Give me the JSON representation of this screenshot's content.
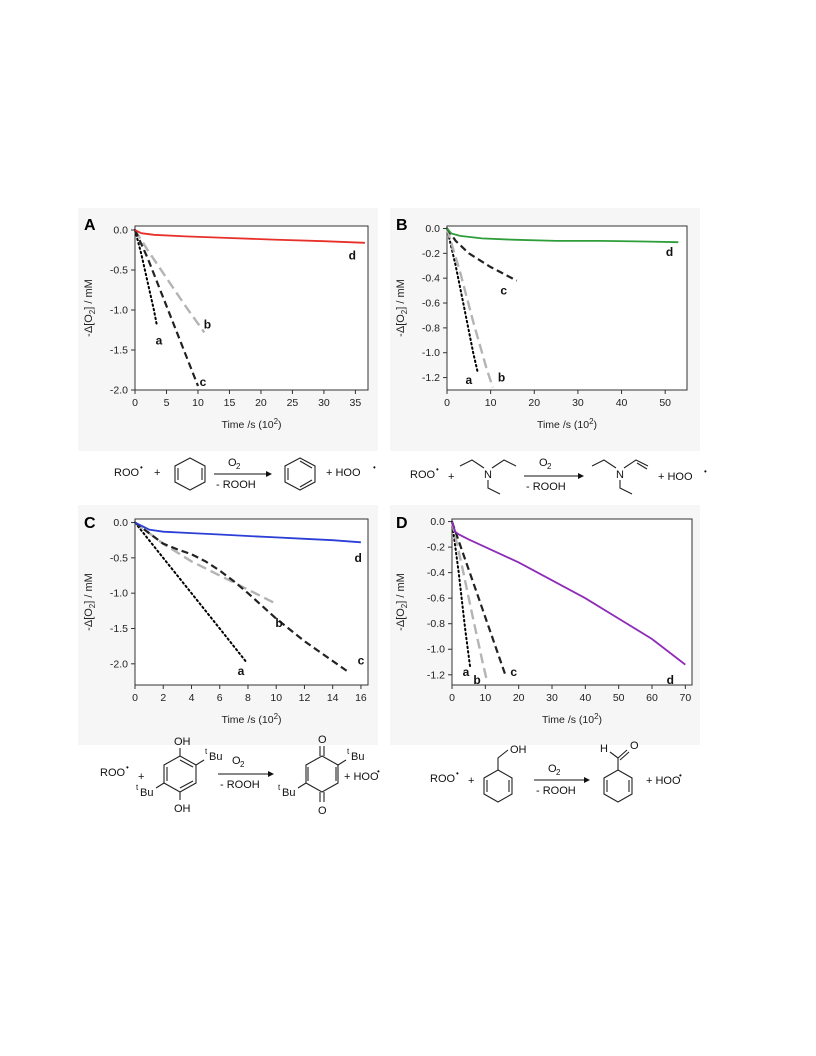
{
  "chart_data": [
    {
      "type": "line",
      "panel": "A",
      "xlabel": "Time /s (10",
      "xlabel_sup": "2",
      "xlabel_end": ")",
      "ylabel": "-Δ[O",
      "ylabel_sub": "2",
      "ylabel_end": "] / mM",
      "xlim": [
        0,
        37
      ],
      "ylim": [
        -2.0,
        0.05
      ],
      "xticks": [
        0,
        5,
        10,
        15,
        20,
        25,
        30,
        35
      ],
      "xtick_labels": [
        "0",
        "5",
        "10",
        "15",
        "20",
        "25",
        "30",
        "35"
      ],
      "yticks": [
        0.0,
        -0.5,
        -1.0,
        -1.5,
        -2.0
      ],
      "ytick_labels": [
        "0.0",
        "-0.5",
        "-1.0",
        "-1.5",
        "-2.0"
      ],
      "series": [
        {
          "name": "a",
          "style": "dotted",
          "color": "#000000",
          "x": [
            0,
            1,
            2,
            3,
            3.5
          ],
          "y": [
            0,
            -0.3,
            -0.65,
            -1.0,
            -1.2
          ]
        },
        {
          "name": "b",
          "style": "dashed-light",
          "color": "#b4b4b4",
          "x": [
            0,
            2,
            5,
            8,
            11
          ],
          "y": [
            0,
            -0.25,
            -0.6,
            -0.95,
            -1.28
          ]
        },
        {
          "name": "c",
          "style": "dashed",
          "color": "#222222",
          "x": [
            0,
            2,
            4,
            6,
            8,
            10
          ],
          "y": [
            0,
            -0.35,
            -0.75,
            -1.15,
            -1.55,
            -1.95
          ]
        },
        {
          "name": "d",
          "style": "solid",
          "color": "#e8302a",
          "x": [
            0,
            1,
            3,
            8,
            15,
            22,
            30,
            36.5
          ],
          "y": [
            0,
            -0.04,
            -0.06,
            -0.08,
            -0.1,
            -0.12,
            -0.14,
            -0.16
          ]
        }
      ],
      "label_positions": [
        {
          "text": "a",
          "x": 3.8,
          "y": -1.38
        },
        {
          "text": "b",
          "x": 11.5,
          "y": -1.18
        },
        {
          "text": "c",
          "x": 10.8,
          "y": -1.9
        },
        {
          "text": "d",
          "x": 34.5,
          "y": -0.32
        }
      ]
    },
    {
      "type": "line",
      "panel": "B",
      "xlabel": "Time /s (10",
      "xlabel_sup": "2",
      "xlabel_end": ")",
      "ylabel": "-Δ[O",
      "ylabel_sub": "2",
      "ylabel_end": "] / mM",
      "xlim": [
        0,
        55
      ],
      "ylim": [
        -1.3,
        0.02
      ],
      "xticks": [
        0,
        10,
        20,
        30,
        40,
        50
      ],
      "xtick_labels": [
        "0",
        "10",
        "20",
        "30",
        "40",
        "50"
      ],
      "yticks": [
        0.0,
        -0.2,
        -0.4,
        -0.6,
        -0.8,
        -1.0,
        -1.2
      ],
      "ytick_labels": [
        "0.0",
        "-0.2",
        "-0.4",
        "-0.6",
        "-0.8",
        "-1.0",
        "-1.2"
      ],
      "series": [
        {
          "name": "a",
          "style": "dotted",
          "color": "#000000",
          "x": [
            0,
            2,
            4,
            6,
            7
          ],
          "y": [
            0,
            -0.3,
            -0.65,
            -1.0,
            -1.15
          ]
        },
        {
          "name": "b",
          "style": "dashed-light",
          "color": "#b4b4b4",
          "x": [
            0,
            3,
            6,
            9,
            10.5
          ],
          "y": [
            0,
            -0.35,
            -0.75,
            -1.12,
            -1.28
          ]
        },
        {
          "name": "c",
          "style": "dashed",
          "color": "#222222",
          "x": [
            0,
            2,
            5,
            10,
            16
          ],
          "y": [
            0,
            -0.1,
            -0.2,
            -0.31,
            -0.42
          ]
        },
        {
          "name": "d",
          "style": "solid",
          "color": "#2e9e3a",
          "x": [
            0,
            1,
            3,
            8,
            15,
            25,
            35,
            45,
            53
          ],
          "y": [
            0,
            -0.04,
            -0.06,
            -0.08,
            -0.09,
            -0.1,
            -0.1,
            -0.105,
            -0.11
          ]
        }
      ],
      "label_positions": [
        {
          "text": "a",
          "x": 5,
          "y": -1.22
        },
        {
          "text": "b",
          "x": 12.5,
          "y": -1.2
        },
        {
          "text": "c",
          "x": 13,
          "y": -0.5
        },
        {
          "text": "d",
          "x": 51,
          "y": -0.19
        }
      ]
    },
    {
      "type": "line",
      "panel": "C",
      "xlabel": "Time /s (10",
      "xlabel_sup": "2",
      "xlabel_end": ")",
      "ylabel": "-Δ[O",
      "ylabel_sub": "2",
      "ylabel_end": "] / mM",
      "xlim": [
        0,
        16.5
      ],
      "ylim": [
        -2.3,
        0.05
      ],
      "xticks": [
        0,
        2,
        4,
        6,
        8,
        10,
        12,
        14,
        16
      ],
      "xtick_labels": [
        "0",
        "2",
        "4",
        "6",
        "8",
        "10",
        "12",
        "14",
        "16"
      ],
      "yticks": [
        0.0,
        -0.5,
        -1.0,
        -1.5,
        -2.0
      ],
      "ytick_labels": [
        "0.0",
        "-0.5",
        "-1.0",
        "-1.5",
        "-2.0"
      ],
      "series": [
        {
          "name": "a",
          "style": "dotted",
          "color": "#000000",
          "x": [
            0,
            2,
            4,
            6,
            7.9
          ],
          "y": [
            0,
            -0.5,
            -1.0,
            -1.5,
            -1.98
          ]
        },
        {
          "name": "b",
          "style": "dashed-light",
          "color": "#b4b4b4",
          "x": [
            0,
            1,
            2,
            4,
            6,
            8,
            10
          ],
          "y": [
            0,
            -0.15,
            -0.3,
            -0.55,
            -0.75,
            -0.95,
            -1.15
          ]
        },
        {
          "name": "c",
          "style": "dashed",
          "color": "#222222",
          "x": [
            0,
            1,
            2,
            3,
            4,
            5,
            6,
            7,
            8,
            9,
            10,
            11,
            12,
            13,
            14,
            15
          ],
          "y": [
            0,
            -0.15,
            -0.3,
            -0.38,
            -0.45,
            -0.55,
            -0.68,
            -0.83,
            -1.0,
            -1.18,
            -1.36,
            -1.52,
            -1.68,
            -1.82,
            -1.96,
            -2.1
          ]
        },
        {
          "name": "d",
          "style": "solid",
          "color": "#2b3fd6",
          "x": [
            0,
            0.5,
            1,
            2,
            4,
            6,
            8,
            10,
            12,
            14,
            16
          ],
          "y": [
            0,
            -0.05,
            -0.1,
            -0.13,
            -0.15,
            -0.17,
            -0.19,
            -0.21,
            -0.23,
            -0.25,
            -0.28
          ]
        }
      ],
      "label_positions": [
        {
          "text": "a",
          "x": 7.5,
          "y": -2.1
        },
        {
          "text": "b",
          "x": 10.2,
          "y": -1.42
        },
        {
          "text": "c",
          "x": 16,
          "y": -1.95
        },
        {
          "text": "d",
          "x": 15.8,
          "y": -0.5
        }
      ]
    },
    {
      "type": "line",
      "panel": "D",
      "xlabel": "Time /s (10",
      "xlabel_sup": "2",
      "xlabel_end": ")",
      "ylabel": "-Δ[O",
      "ylabel_sub": "2",
      "ylabel_end": "] / mM",
      "xlim": [
        0,
        72
      ],
      "ylim": [
        -1.28,
        0.02
      ],
      "xticks": [
        0,
        10,
        20,
        30,
        40,
        50,
        60,
        70
      ],
      "xtick_labels": [
        "0",
        "10",
        "20",
        "30",
        "40",
        "50",
        "60",
        "70"
      ],
      "yticks": [
        0.0,
        -0.2,
        -0.4,
        -0.6,
        -0.8,
        -1.0,
        -1.2
      ],
      "ytick_labels": [
        "0.0",
        "-0.2",
        "-0.4",
        "-0.6",
        "-0.8",
        "-1.0",
        "-1.2"
      ],
      "series": [
        {
          "name": "a",
          "style": "dotted",
          "color": "#000000",
          "x": [
            0,
            2,
            4,
            5.5
          ],
          "y": [
            0,
            -0.4,
            -0.85,
            -1.15
          ]
        },
        {
          "name": "b",
          "style": "dashed-light",
          "color": "#b4b4b4",
          "x": [
            0,
            3,
            6,
            9,
            10.5
          ],
          "y": [
            0,
            -0.35,
            -0.72,
            -1.08,
            -1.25
          ]
        },
        {
          "name": "c",
          "style": "dashed",
          "color": "#222222",
          "x": [
            0,
            4,
            8,
            12,
            16
          ],
          "y": [
            0,
            -0.3,
            -0.6,
            -0.9,
            -1.2
          ]
        },
        {
          "name": "d",
          "style": "solid",
          "color": "#8e2bb8",
          "x": [
            0,
            0.5,
            1,
            2,
            5,
            10,
            20,
            30,
            40,
            50,
            60,
            70
          ],
          "y": [
            0,
            -0.04,
            -0.08,
            -0.1,
            -0.14,
            -0.2,
            -0.32,
            -0.46,
            -0.6,
            -0.76,
            -0.92,
            -1.12
          ]
        }
      ],
      "label_positions": [
        {
          "text": "a",
          "x": 4.2,
          "y": -1.18
        },
        {
          "text": "b",
          "x": 7.5,
          "y": -1.24
        },
        {
          "text": "c",
          "x": 18.5,
          "y": -1.18
        },
        {
          "text": "d",
          "x": 65.5,
          "y": -1.24
        }
      ]
    }
  ],
  "panels": {
    "A": {
      "letter": "A"
    },
    "B": {
      "letter": "B"
    },
    "C": {
      "letter": "C"
    },
    "D": {
      "letter": "D"
    }
  },
  "schemes": {
    "A": {
      "reactant": "ROO",
      "oxidant": "O",
      "oxidant_sub": "2",
      "byproduct": "- ROOH",
      "product_radical": "+ HOO",
      "plus": "+"
    },
    "B": {
      "reactant": "ROO",
      "oxidant": "O",
      "oxidant_sub": "2",
      "byproduct": "- ROOH",
      "product_radical": "+ HOO",
      "plus": "+",
      "atom": "N"
    },
    "C": {
      "reactant": "ROO",
      "oxidant": "O",
      "oxidant_sub": "2",
      "byproduct": "- ROOH",
      "product_radical": "+ HOO",
      "plus": "+",
      "oh": "OH",
      "o": "O",
      "tbu_sup": "t",
      "tbu": "Bu"
    },
    "D": {
      "reactant": "ROO",
      "oxidant": "O",
      "oxidant_sub": "2",
      "byproduct": "- ROOH",
      "product_radical": "+ HOO",
      "plus": "+",
      "oh": "OH",
      "h": "H",
      "o": "O"
    }
  }
}
